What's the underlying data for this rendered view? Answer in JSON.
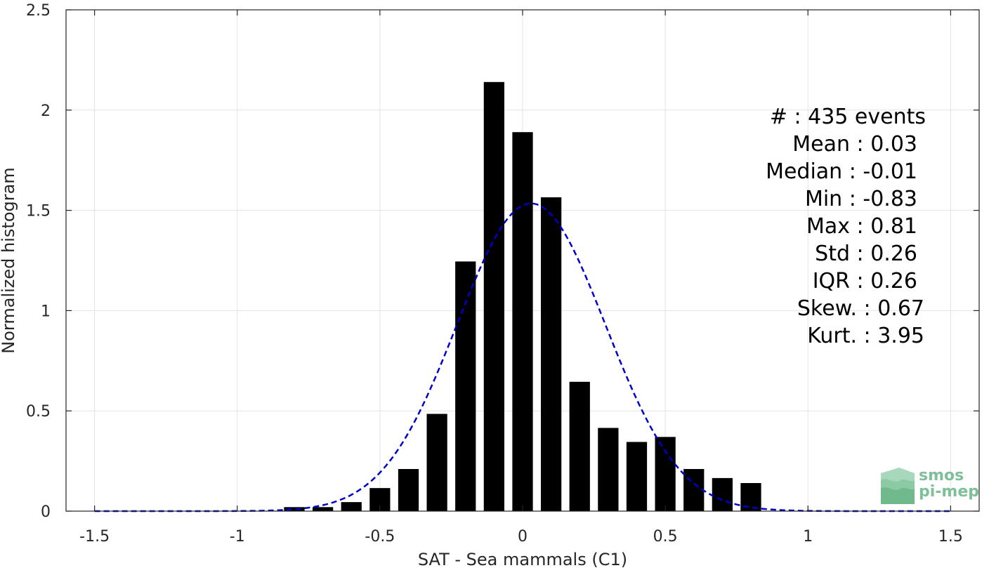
{
  "chart_data": {
    "type": "bar",
    "xlabel": "SAT - Sea mammals (C1)",
    "ylabel": "Normalized histogram",
    "xlim": [
      -1.6,
      1.6
    ],
    "ylim": [
      0,
      2.5
    ],
    "xticks": [
      -1.5,
      -1,
      -0.5,
      0,
      0.5,
      1,
      1.5
    ],
    "xtick_labels": [
      "-1.5",
      "-1",
      "-0.5",
      "0",
      "0.5",
      "1",
      "1.5"
    ],
    "yticks": [
      0,
      0.5,
      1,
      1.5,
      2,
      2.5
    ],
    "ytick_labels": [
      "0",
      "0.5",
      "1",
      "1.5",
      "2",
      "2.5"
    ],
    "grid": true,
    "bar_color": "#000000",
    "bin_width": 0.1,
    "bar_relative_width": 0.72,
    "bins": {
      "centers": [
        -0.8,
        -0.7,
        -0.6,
        -0.5,
        -0.4,
        -0.3,
        -0.2,
        -0.1,
        0.0,
        0.1,
        0.2,
        0.3,
        0.4,
        0.5,
        0.6,
        0.7,
        0.8
      ],
      "values": [
        0.02,
        0.02,
        0.045,
        0.115,
        0.21,
        0.485,
        1.245,
        2.14,
        1.89,
        1.565,
        0.645,
        0.415,
        0.345,
        0.37,
        0.21,
        0.165,
        0.14
      ]
    },
    "fit_curve": {
      "type": "normal",
      "color": "#0000cc",
      "style": "dashed",
      "mean": 0.03,
      "std": 0.26,
      "x_range": [
        -1.5,
        1.5
      ]
    }
  },
  "stats": {
    "count": "#  : 435 events",
    "mean": "Mean : 0.03",
    "median": "Median : -0.01",
    "min": "Min : -0.83",
    "max": "Max : 0.81",
    "std": "Std : 0.26",
    "iqr": "IQR : 0.26",
    "skew": "Skew. : 0.67",
    "kurt": "Kurt. : 3.95"
  },
  "logo": {
    "line1": "smos",
    "line2": "pi-mep",
    "icon": "wave-layers-icon",
    "color": "#7fbf9a"
  }
}
